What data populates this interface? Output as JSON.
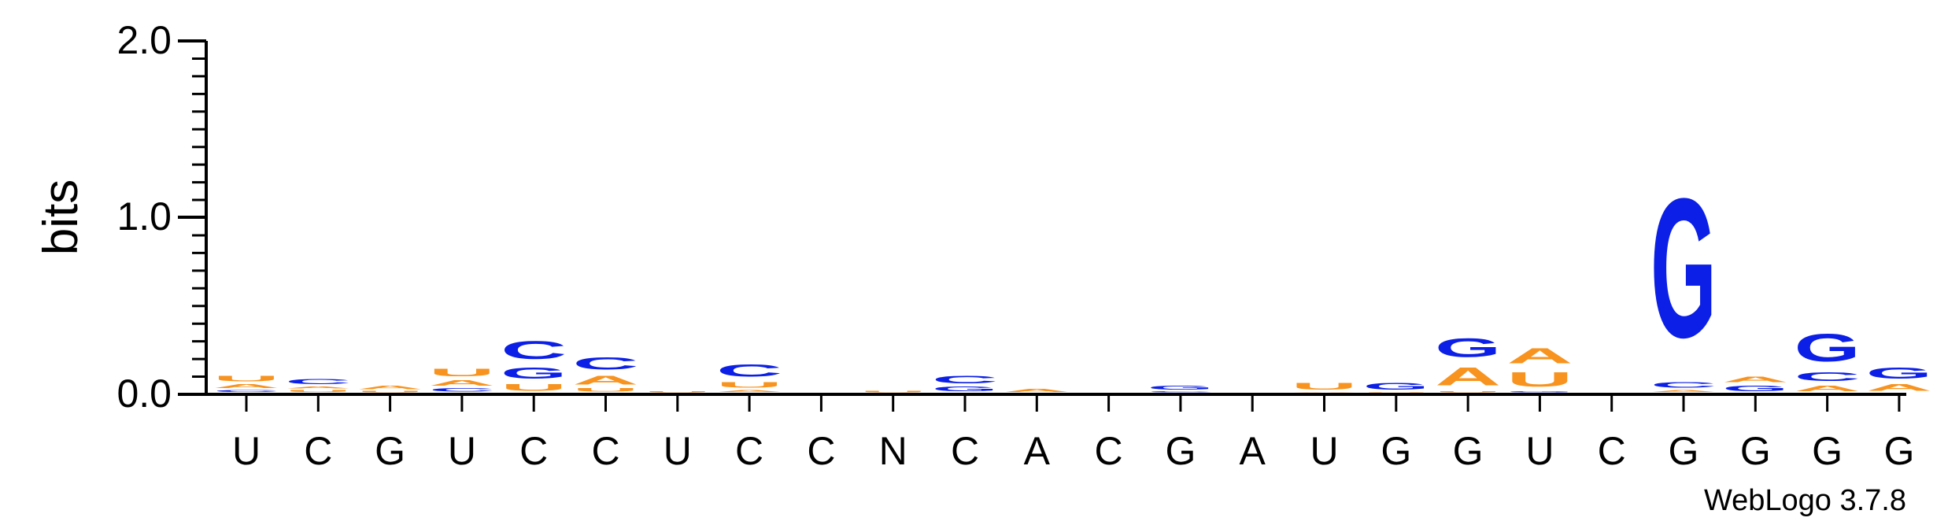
{
  "chart_data": {
    "type": "sequence-logo",
    "ylabel": "bits",
    "ylim": [
      0,
      2.0
    ],
    "yticks": [
      "0.0",
      "1.0",
      "2.0"
    ],
    "colors": {
      "C": "#0b1fe6",
      "G": "#0b1fe6",
      "A": "#f7931e",
      "U": "#f7931e"
    },
    "x_labels": [
      "U",
      "C",
      "G",
      "U",
      "C",
      "C",
      "U",
      "C",
      "C",
      "N",
      "C",
      "A",
      "C",
      "G",
      "A",
      "U",
      "G",
      "G",
      "U",
      "C",
      "G",
      "G",
      "G",
      "G"
    ],
    "positions": [
      [
        {
          "l": "U",
          "h": 0.05
        },
        {
          "l": "A",
          "h": 0.035
        },
        {
          "l": "C",
          "h": 0.02
        }
      ],
      [
        {
          "l": "C",
          "h": 0.045
        },
        {
          "l": "U",
          "h": 0.02
        },
        {
          "l": "A",
          "h": 0.02
        }
      ],
      [
        {
          "l": "A",
          "h": 0.03
        },
        {
          "l": "U",
          "h": 0.015
        }
      ],
      [
        {
          "l": "U",
          "h": 0.07
        },
        {
          "l": "A",
          "h": 0.05
        },
        {
          "l": "C",
          "h": 0.03
        }
      ],
      [
        {
          "l": "C",
          "h": 0.16
        },
        {
          "l": "G",
          "h": 0.1
        },
        {
          "l": "U",
          "h": 0.06
        }
      ],
      [
        {
          "l": "C",
          "h": 0.11
        },
        {
          "l": "A",
          "h": 0.08
        },
        {
          "l": "U",
          "h": 0.03
        }
      ],
      [
        {
          "l": "U",
          "h": 0.01
        }
      ],
      [
        {
          "l": "C",
          "h": 0.11
        },
        {
          "l": "U",
          "h": 0.05
        },
        {
          "l": "A",
          "h": 0.02
        }
      ],
      [],
      [
        {
          "l": "U",
          "h": 0.015
        }
      ],
      [
        {
          "l": "C",
          "h": 0.07
        },
        {
          "l": "G",
          "h": 0.04
        }
      ],
      [
        {
          "l": "A",
          "h": 0.025
        }
      ],
      [],
      [
        {
          "l": "G",
          "h": 0.035
        },
        {
          "l": "C",
          "h": 0.01
        }
      ],
      [],
      [
        {
          "l": "U",
          "h": 0.06
        },
        {
          "l": "A",
          "h": 0.005
        }
      ],
      [
        {
          "l": "G",
          "h": 0.06
        },
        {
          "l": "U",
          "h": 0.005
        }
      ],
      [
        {
          "l": "G",
          "h": 0.17
        },
        {
          "l": "A",
          "h": 0.16
        },
        {
          "l": "U",
          "h": 0.01
        }
      ],
      [
        {
          "l": "A",
          "h": 0.14
        },
        {
          "l": "U",
          "h": 0.13
        },
        {
          "l": "G",
          "h": 0.01
        }
      ],
      [],
      [
        {
          "l": "G",
          "h": 1.26
        },
        {
          "l": "C",
          "h": 0.05
        },
        {
          "l": "A",
          "h": 0.02
        }
      ],
      [
        {
          "l": "G",
          "h": 0.05
        },
        {
          "l": "A",
          "h": 0.05
        }
      ],
      [
        {
          "l": "G",
          "h": 0.25
        },
        {
          "l": "C",
          "h": 0.08
        },
        {
          "l": "A",
          "h": 0.05
        }
      ],
      [
        {
          "l": "G",
          "h": 0.1
        },
        {
          "l": "A",
          "h": 0.06
        }
      ]
    ]
  },
  "footer": {
    "version": "WebLogo 3.7.8"
  }
}
